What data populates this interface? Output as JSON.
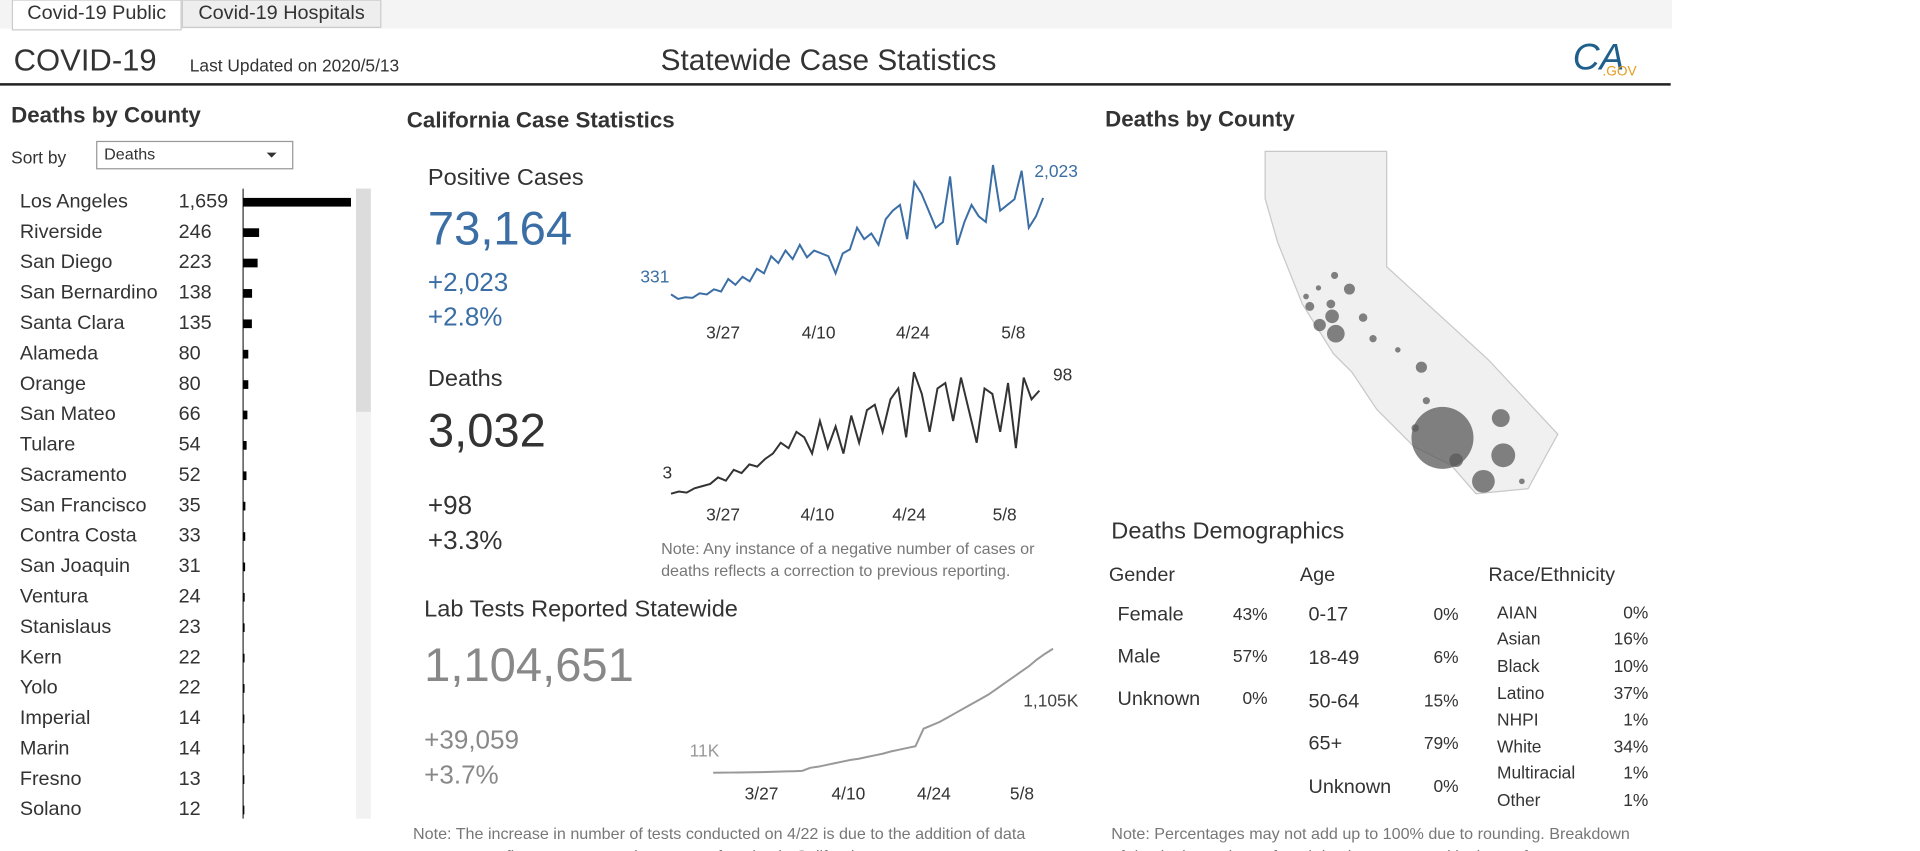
{
  "tabs": [
    "Covid-19 Public",
    "Covid-19 Hospitals"
  ],
  "header": {
    "title": "COVID-19",
    "updated": "Last Updated on 2020/5/13",
    "center_title": "Statewide Case Statistics",
    "logo": "CA",
    "logo_suffix": ".GOV"
  },
  "county_panel": {
    "title": "Deaths by County",
    "sort_label": "Sort by",
    "sort_value": "Deaths",
    "counties": [
      {
        "name": "Los Angeles",
        "deaths": 1659,
        "label": "1,659"
      },
      {
        "name": "Riverside",
        "deaths": 246
      },
      {
        "name": "San Diego",
        "deaths": 223
      },
      {
        "name": "San Bernardino",
        "deaths": 138
      },
      {
        "name": "Santa Clara",
        "deaths": 135
      },
      {
        "name": "Alameda",
        "deaths": 80
      },
      {
        "name": "Orange",
        "deaths": 80
      },
      {
        "name": "San Mateo",
        "deaths": 66
      },
      {
        "name": "Tulare",
        "deaths": 54
      },
      {
        "name": "Sacramento",
        "deaths": 52
      },
      {
        "name": "San Francisco",
        "deaths": 35
      },
      {
        "name": "Contra Costa",
        "deaths": 33
      },
      {
        "name": "San Joaquin",
        "deaths": 31
      },
      {
        "name": "Ventura",
        "deaths": 24
      },
      {
        "name": "Stanislaus",
        "deaths": 23
      },
      {
        "name": "Kern",
        "deaths": 22
      },
      {
        "name": "Yolo",
        "deaths": 22
      },
      {
        "name": "Imperial",
        "deaths": 14
      },
      {
        "name": "Marin",
        "deaths": 14
      },
      {
        "name": "Fresno",
        "deaths": 13
      },
      {
        "name": "Solano",
        "deaths": 12
      }
    ]
  },
  "case_stats": {
    "title": "California Case Statistics",
    "positive": {
      "label": "Positive Cases",
      "total": "73,164",
      "change": "+2,023",
      "pct": "+2.8%",
      "color": "#3a6ea5",
      "values": [
        331,
        250,
        280,
        270,
        350,
        330,
        420,
        380,
        600,
        500,
        640,
        560,
        780,
        700,
        1000,
        880,
        1100,
        950,
        1200,
        980,
        1100,
        1050,
        1000,
        700,
        1050,
        1120,
        1500,
        1300,
        1400,
        1200,
        1650,
        1800,
        1900,
        1300,
        2300,
        2100,
        1800,
        1500,
        1600,
        2400,
        1200,
        1600,
        1900,
        1700,
        1600,
        2600,
        1800,
        1900,
        2000,
        2500,
        1500,
        1700,
        2023
      ],
      "first_label": "331",
      "last_label": "2,023",
      "xticks": [
        "3/27",
        "4/10",
        "4/24",
        "5/8"
      ]
    },
    "deaths": {
      "label": "Deaths",
      "total": "3,032",
      "change": "+98",
      "pct": "+3.3%",
      "color": "#333333",
      "values": [
        3,
        5,
        4,
        8,
        10,
        12,
        18,
        15,
        25,
        22,
        30,
        28,
        35,
        40,
        50,
        45,
        60,
        55,
        40,
        70,
        45,
        65,
        40,
        75,
        50,
        80,
        85,
        60,
        90,
        100,
        55,
        115,
        95,
        60,
        100,
        105,
        70,
        110,
        80,
        50,
        100,
        95,
        60,
        105,
        45,
        110,
        90,
        98
      ],
      "first_label": "3",
      "last_label": "98",
      "xticks": [
        "3/27",
        "4/10",
        "4/24",
        "5/8"
      ],
      "note": "Note: Any instance of a negative number of cases or",
      "note2": "deaths reflects a correction to previous reporting."
    },
    "lab": {
      "label": "Lab Tests Reported Statewide",
      "total": "1,104,651",
      "change": "+39,059",
      "pct": "+3.7%",
      "color": "#999999",
      "values": [
        11,
        12,
        13,
        14,
        15,
        16,
        17,
        19,
        21,
        23,
        25,
        28,
        55,
        65,
        80,
        95,
        110,
        125,
        135,
        150,
        165,
        180,
        200,
        215,
        230,
        245,
        400,
        430,
        460,
        500,
        540,
        580,
        620,
        660,
        700,
        750,
        800,
        850,
        900,
        950,
        1010,
        1060,
        1105
      ],
      "first_label": "11K",
      "last_label": "1,105K",
      "xticks": [
        "3/27",
        "4/10",
        "4/24",
        "5/8"
      ],
      "note": "Note: The increase in number of tests conducted on 4/22 is due to the addition of data",
      "note2": "sources to reflect a more complete count of testing in California."
    }
  },
  "map": {
    "title": "Deaths by County"
  },
  "demographics": {
    "title": "Deaths Demographics",
    "gender": {
      "title": "Gender",
      "rows": [
        [
          "Female",
          "43%"
        ],
        [
          "Male",
          "57%"
        ],
        [
          "Unknown",
          "0%"
        ]
      ]
    },
    "age": {
      "title": "Age",
      "rows": [
        [
          "0-17",
          "0%"
        ],
        [
          "18-49",
          "6%"
        ],
        [
          "50-64",
          "15%"
        ],
        [
          "65+",
          "79%"
        ],
        [
          "Unknown",
          "0%"
        ]
      ]
    },
    "race": {
      "title": "Race/Ethnicity",
      "rows": [
        [
          "AIAN",
          "0%"
        ],
        [
          "Asian",
          "16%"
        ],
        [
          "Black",
          "10%"
        ],
        [
          "Latino",
          "37%"
        ],
        [
          "NHPI",
          "1%"
        ],
        [
          "White",
          "34%"
        ],
        [
          "Multiracial",
          "1%"
        ],
        [
          "Other",
          "1%"
        ]
      ]
    },
    "note": "Note: Percentages may not add up to 100% due to rounding. Breakdown",
    "note2": "of deaths is a subset of total deaths as reported by law enforcement."
  }
}
